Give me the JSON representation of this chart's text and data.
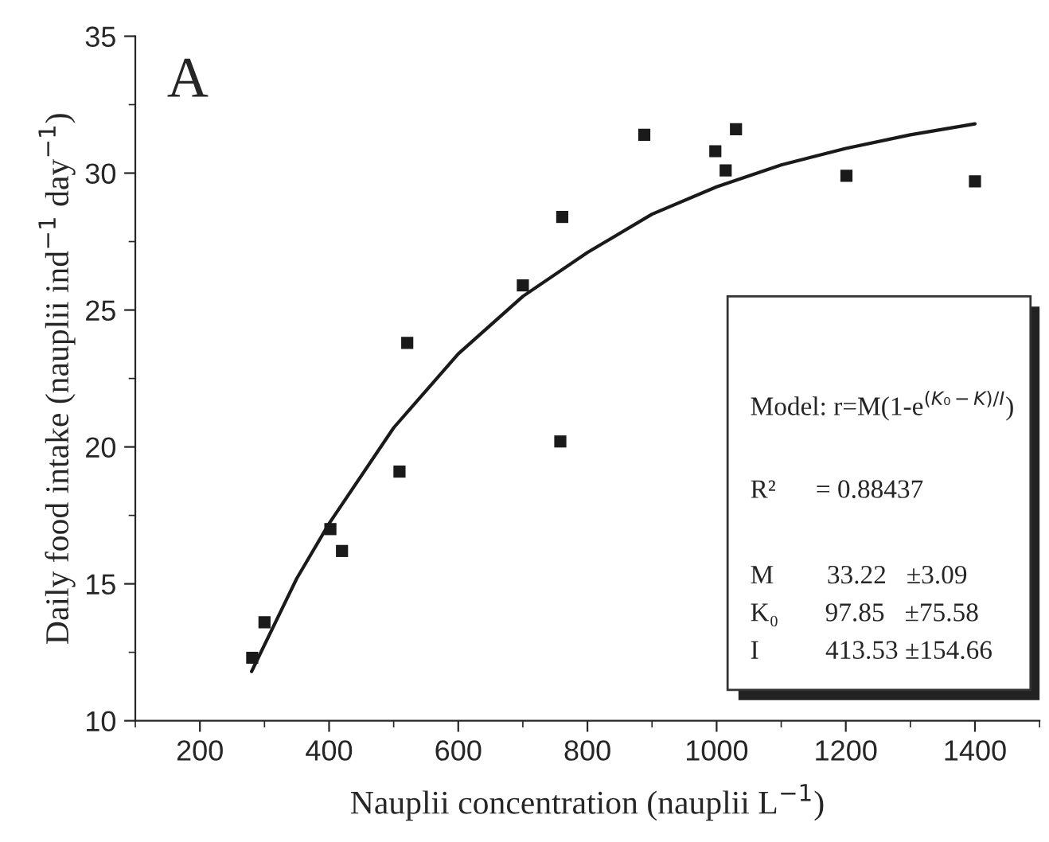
{
  "chart_data": {
    "type": "scatter",
    "title": "A",
    "xlabel": "Nauplii concentration (nauplii L$^{−1}$)",
    "ylabel": "Daily food intake (nauplii ind$^{−1}$ day$^{−1}$)",
    "xlim": [
      100,
      1500
    ],
    "xticks": [
      200,
      400,
      600,
      800,
      1000,
      1200,
      1400
    ],
    "ylim": [
      10,
      35
    ],
    "yticks": [
      10,
      15,
      20,
      25,
      30,
      35
    ],
    "grid": false,
    "legend": false,
    "marker": "square",
    "series": [
      {
        "color": "#1a1a1a",
        "x": [
          281,
          300,
          402,
          420,
          509,
          521,
          700,
          758,
          761,
          888,
          998,
          1014,
          1030,
          1201,
          1400
        ],
        "values": [
          12.3,
          13.6,
          17.0,
          16.2,
          19.1,
          23.8,
          25.9,
          20.2,
          28.4,
          31.4,
          30.8,
          30.1,
          31.6,
          29.9,
          29.7
        ]
      },
      {
        "type": "line",
        "color": "#1a1a1a",
        "marker": "none",
        "line_style": "solid",
        "x": [
          280,
          350,
          400,
          500,
          600,
          700,
          800,
          900,
          1000,
          1100,
          1200,
          1300,
          1400
        ],
        "values": [
          11.8,
          15.2,
          17.2,
          20.7,
          23.4,
          25.5,
          27.1,
          28.5,
          29.5,
          30.3,
          30.9,
          31.4,
          31.8
        ]
      }
    ],
    "annotations": [
      "Model: r=M(1-e$^{(K₀−K)/I}$)",
      "R²      = 0.88437",
      "M        33.22   ±3.09",
      "K₀       97.85   ±75.58",
      "I          413.53 ±154.66"
    ]
  }
}
